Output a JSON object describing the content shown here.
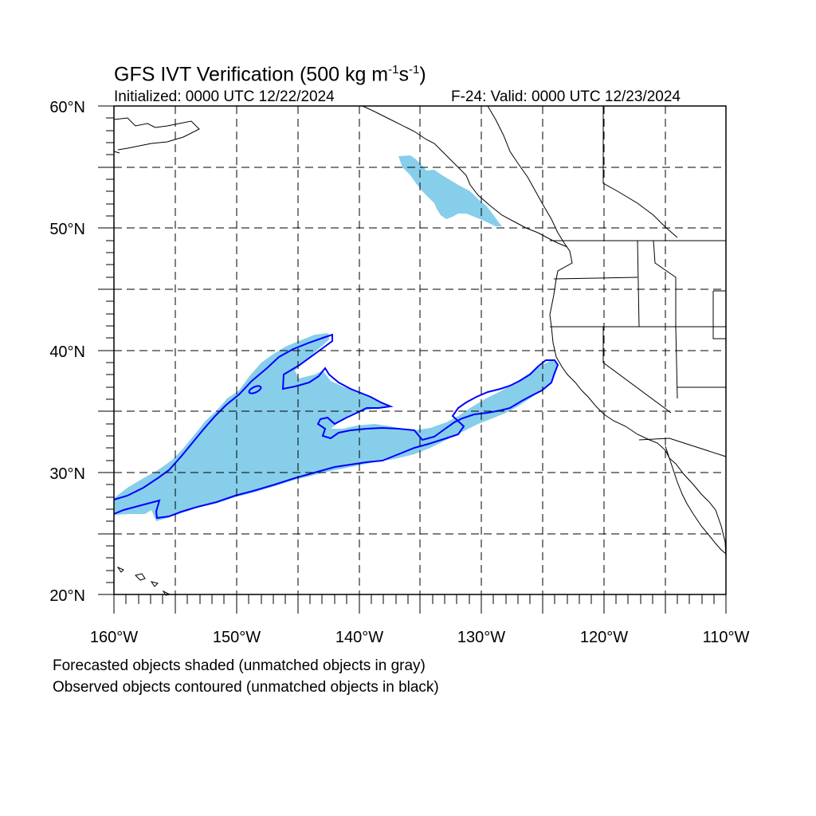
{
  "map": {
    "title_main": "GFS IVT Verification (500 kg m",
    "title_sup1": "-1",
    "title_mid": "s",
    "title_sup2": "-1",
    "title_end": ")",
    "initialized": "Initialized: 0000 UTC 12/22/2024",
    "valid": "F-24: Valid: 0000 UTC 12/23/2024",
    "lat_labels": [
      "60°N",
      "50°N",
      "40°N",
      "30°N",
      "20°N"
    ],
    "lon_labels": [
      "160°W",
      "150°W",
      "140°W",
      "130°W",
      "120°W",
      "110°W"
    ],
    "extent": {
      "lon_min": -160,
      "lon_max": -110,
      "lat_min": 20,
      "lat_max": 60
    },
    "caption_forecast": "Forecasted objects shaded (unmatched objects in gray)",
    "caption_observed": "Observed objects contoured (unmatched objects in black)",
    "colors": {
      "forecast_fill": "#87ceeb",
      "observed_contour": "#0000ff",
      "coastline": "#000000",
      "gridline": "#000000"
    }
  }
}
